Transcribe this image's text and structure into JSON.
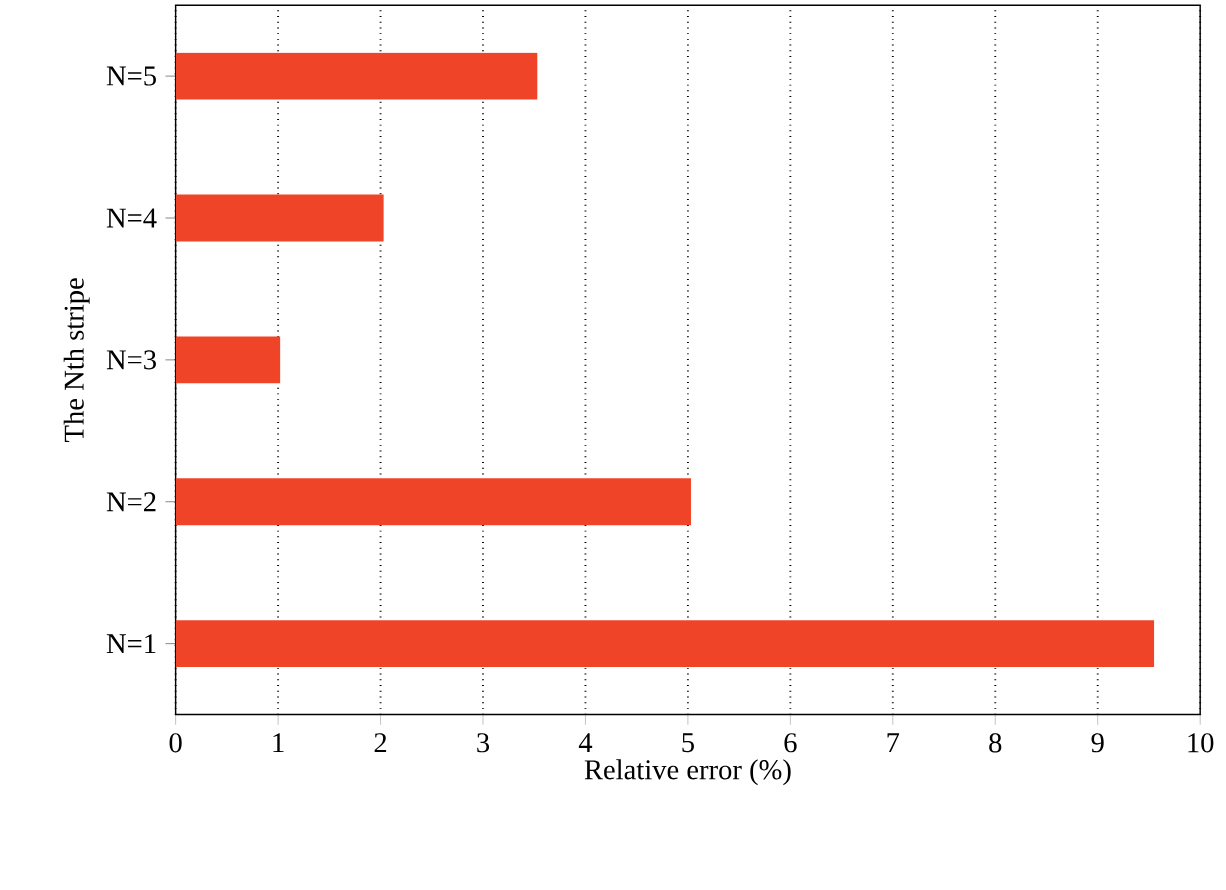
{
  "chart_data": {
    "type": "bar",
    "orientation": "horizontal",
    "xlabel": "Relative error (%)",
    "ylabel": "The Nth stripe",
    "categories": [
      "N=5",
      "N=4",
      "N=3",
      "N=2",
      "N=1"
    ],
    "values": [
      3.53,
      2.03,
      1.02,
      5.03,
      9.55
    ],
    "color": "#f04428",
    "xlim": [
      0,
      10
    ],
    "xticks": [
      0,
      1,
      2,
      3,
      4,
      5,
      6,
      7,
      8,
      9,
      10
    ],
    "grid": "x"
  }
}
